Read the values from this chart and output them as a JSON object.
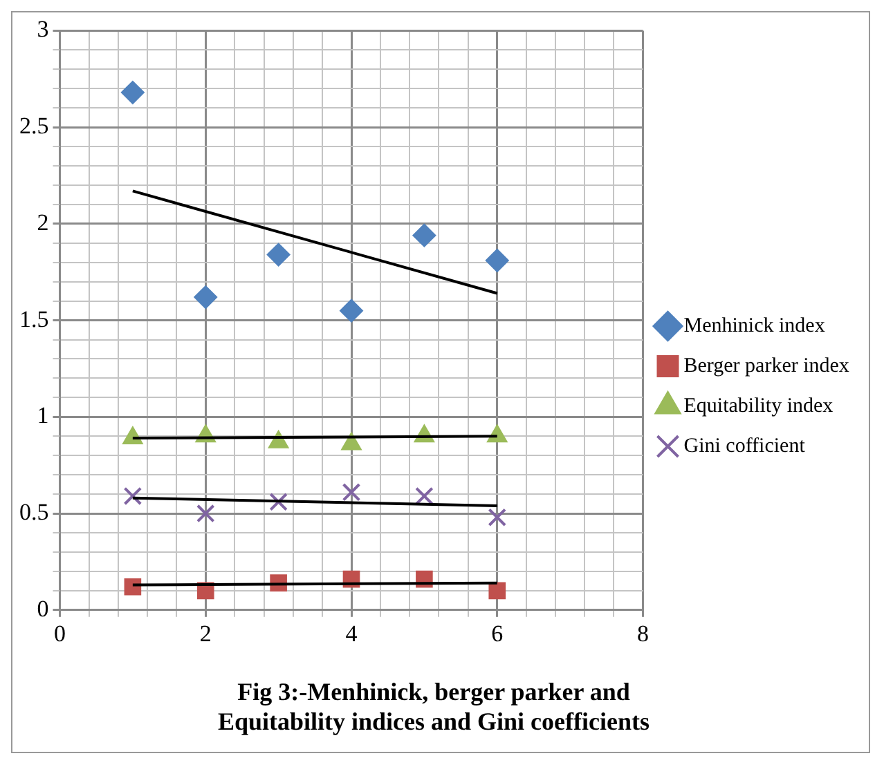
{
  "chart_data": {
    "type": "scatter",
    "title": "Fig 3:-Menhinick, berger parker and\nEquitability indices and Gini coefficients",
    "xlim": [
      0,
      8
    ],
    "xticks": [
      0,
      {
        "value": 0.4,
        "label": null
      },
      {
        "value": 0.8,
        "label": null
      },
      {
        "value": 1.2,
        "label": null
      },
      {
        "value": 1.6,
        "label": null
      },
      2,
      {
        "value": 2.4,
        "label": null
      },
      {
        "value": 2.8,
        "label": null
      },
      {
        "value": 3.2,
        "label": null
      },
      {
        "value": 3.6,
        "label": null
      },
      4,
      {
        "value": 4.4,
        "label": null
      },
      {
        "value": 4.8,
        "label": null
      },
      {
        "value": 5.2,
        "label": null
      },
      {
        "value": 5.6,
        "label": null
      },
      6,
      {
        "value": 6.4,
        "label": null
      },
      {
        "value": 6.8,
        "label": null
      },
      {
        "value": 7.2,
        "label": null
      },
      {
        "value": 7.6,
        "label": null
      },
      8
    ],
    "ylim": [
      0,
      3
    ],
    "yticks": [
      0,
      {
        "value": 0.1,
        "label": null
      },
      {
        "value": 0.2,
        "label": null
      },
      {
        "value": 0.3,
        "label": null
      },
      {
        "value": 0.4,
        "label": null
      },
      0.5,
      {
        "value": 0.6,
        "label": null
      },
      {
        "value": 0.7,
        "label": null
      },
      {
        "value": 0.8,
        "label": null
      },
      {
        "value": 0.9,
        "label": null
      },
      1,
      {
        "value": 1.1,
        "label": null
      },
      {
        "value": 1.2,
        "label": null
      },
      {
        "value": 1.3,
        "label": null
      },
      {
        "value": 1.4,
        "label": null
      },
      1.5,
      {
        "value": 1.6,
        "label": null
      },
      {
        "value": 1.7,
        "label": null
      },
      {
        "value": 1.8,
        "label": null
      },
      {
        "value": 1.9,
        "label": null
      },
      2,
      {
        "value": 2.1,
        "label": null
      },
      {
        "value": 2.2,
        "label": null
      },
      {
        "value": 2.3,
        "label": null
      },
      {
        "value": 2.4,
        "label": null
      },
      2.5,
      {
        "value": 2.6,
        "label": null
      },
      {
        "value": 2.7,
        "label": null
      },
      {
        "value": 2.8,
        "label": null
      },
      {
        "value": 2.9,
        "label": null
      },
      3
    ],
    "grid": true,
    "legend": "right",
    "series": [
      {
        "name": "Menhinick index",
        "color": "#4f81bd",
        "marker": "diamond",
        "x": [
          1,
          2,
          3,
          4,
          5,
          6
        ],
        "values": [
          2.68,
          1.62,
          1.84,
          1.55,
          1.94,
          1.81
        ]
      },
      {
        "name": "Berger parker index",
        "color": "#c0504d",
        "marker": "square",
        "x": [
          1,
          2,
          3,
          4,
          5,
          6
        ],
        "values": [
          0.12,
          0.1,
          0.14,
          0.16,
          0.16,
          0.1
        ]
      },
      {
        "name": "Equitability index",
        "color": "#9bbb59",
        "marker": "triangle",
        "x": [
          1,
          2,
          3,
          4,
          5,
          6
        ],
        "values": [
          0.89,
          0.9,
          0.87,
          0.86,
          0.9,
          0.9
        ]
      },
      {
        "name": "Gini cofficient",
        "color": "#8064a2",
        "marker": "cross",
        "x": [
          1,
          2,
          3,
          4,
          5,
          6
        ],
        "values": [
          0.59,
          0.5,
          0.56,
          0.61,
          0.59,
          0.48
        ]
      },
      {
        "type": "line",
        "color": "#000000",
        "marker": "none",
        "x": [
          1,
          6
        ],
        "values": [
          2.17,
          1.64
        ]
      },
      {
        "type": "line",
        "color": "#000000",
        "marker": "none",
        "x": [
          1,
          6
        ],
        "values": [
          0.13,
          0.14
        ]
      },
      {
        "type": "line",
        "color": "#000000",
        "marker": "none",
        "x": [
          1,
          6
        ],
        "values": [
          0.89,
          0.9
        ]
      },
      {
        "type": "line",
        "color": "#000000",
        "marker": "none",
        "x": [
          1,
          6
        ],
        "values": [
          0.58,
          0.54
        ]
      }
    ]
  }
}
